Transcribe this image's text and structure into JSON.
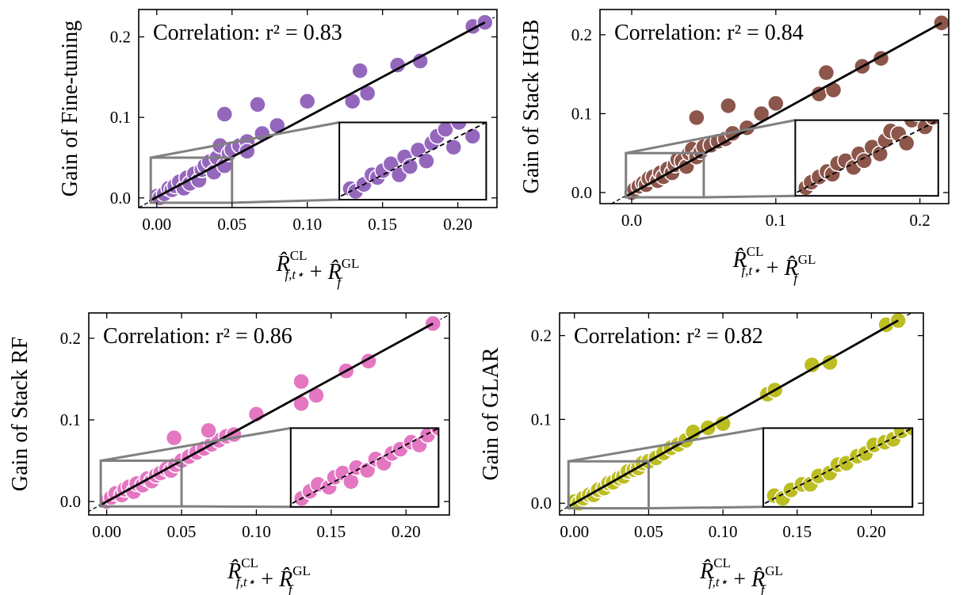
{
  "chart_data": [
    {
      "type": "scatter",
      "ylabel": "Gain of Fine-tuning",
      "annotation": "Correlation:  r² = 0.83",
      "color": "#9467bd",
      "xlabel": [
        {
          "text": "R̂",
          "sup": "CL",
          "sub": "f,t⋆"
        },
        {
          "text": " + "
        },
        {
          "text": "R̂",
          "sup": "GL",
          "sub": "f"
        }
      ],
      "x": [
        0.0,
        0.002,
        0.005,
        0.008,
        0.01,
        0.012,
        0.015,
        0.018,
        0.02,
        0.022,
        0.025,
        0.028,
        0.03,
        0.032,
        0.035,
        0.038,
        0.04,
        0.042,
        0.045,
        0.048,
        0.05,
        0.055,
        0.06,
        0.06,
        0.07,
        0.08,
        0.045,
        0.067,
        0.1,
        0.13,
        0.135,
        0.14,
        0.16,
        0.175,
        0.21,
        0.218
      ],
      "y": [
        0.002,
        0.0,
        0.005,
        0.012,
        0.01,
        0.015,
        0.02,
        0.012,
        0.025,
        0.018,
        0.03,
        0.022,
        0.035,
        0.04,
        0.045,
        0.032,
        0.05,
        0.065,
        0.04,
        0.055,
        0.06,
        0.065,
        0.07,
        0.058,
        0.08,
        0.09,
        0.104,
        0.116,
        0.12,
        0.12,
        0.158,
        0.13,
        0.165,
        0.17,
        0.213,
        0.218
      ],
      "fit": {
        "x": [
          -0.005,
          0.218
        ],
        "y": [
          -0.004,
          0.218
        ]
      },
      "diagonal": true,
      "inset": {
        "xlim": [
          -0.004,
          0.05
        ],
        "ylim": [
          -0.006,
          0.05
        ]
      },
      "xlim": [
        -0.012,
        0.226
      ],
      "ylim": [
        -0.012,
        0.234
      ],
      "xticks": [
        {
          "value": 0,
          "label": "0.00"
        },
        {
          "value": 0.05,
          "label": "0.05"
        },
        {
          "value": 0.1,
          "label": "0.10"
        },
        {
          "value": 0.15,
          "label": "0.15"
        },
        {
          "value": 0.2,
          "label": "0.20"
        }
      ],
      "yticks": [
        {
          "value": 0,
          "label": "0.0"
        },
        0.1,
        0.2
      ]
    },
    {
      "type": "scatter",
      "ylabel": "Gain of Stack HGB",
      "annotation": "Correlation:  r² = 0.84",
      "color": "#8c564b",
      "xlabel": [
        {
          "text": "R̂",
          "sup": "CL",
          "sub": "f,t⋆"
        },
        {
          "text": " + "
        },
        {
          "text": "R̂",
          "sup": "GL",
          "sub": "f"
        }
      ],
      "x": [
        0.0,
        0.002,
        0.005,
        0.008,
        0.01,
        0.012,
        0.015,
        0.018,
        0.02,
        0.022,
        0.025,
        0.028,
        0.03,
        0.032,
        0.035,
        0.038,
        0.04,
        0.042,
        0.045,
        0.048,
        0.05,
        0.055,
        0.06,
        0.065,
        0.07,
        0.08,
        0.09,
        0.045,
        0.067,
        0.1,
        0.13,
        0.135,
        0.14,
        0.16,
        0.173,
        0.215
      ],
      "y": [
        0.0,
        0.004,
        0.008,
        0.012,
        0.01,
        0.018,
        0.02,
        0.015,
        0.025,
        0.02,
        0.03,
        0.025,
        0.035,
        0.042,
        0.04,
        0.033,
        0.05,
        0.055,
        0.045,
        0.052,
        0.058,
        0.06,
        0.065,
        0.068,
        0.075,
        0.082,
        0.1,
        0.095,
        0.11,
        0.113,
        0.125,
        0.152,
        0.13,
        0.16,
        0.17,
        0.215
      ],
      "fit": {
        "x": [
          -0.005,
          0.215
        ],
        "y": [
          -0.006,
          0.215
        ]
      },
      "diagonal": true,
      "inset": {
        "xlim": [
          -0.004,
          0.05
        ],
        "ylim": [
          -0.006,
          0.05
        ]
      },
      "xlim": [
        -0.022,
        0.22
      ],
      "ylim": [
        -0.014,
        0.232
      ],
      "xticks": [
        {
          "value": 0,
          "label": "0.0"
        },
        0.1,
        0.2
      ],
      "yticks": [
        {
          "value": 0,
          "label": "0.0"
        },
        0.1,
        0.2
      ]
    },
    {
      "type": "scatter",
      "ylabel": "Gain of Stack RF",
      "annotation": "Correlation:  r² = 0.86",
      "color": "#e377c2",
      "xlabel": [
        {
          "text": "R̂",
          "sup": "CL",
          "sub": "f,t⋆"
        },
        {
          "text": " + "
        },
        {
          "text": "R̂",
          "sup": "GL",
          "sub": "f"
        }
      ],
      "x": [
        0.0,
        0.003,
        0.006,
        0.01,
        0.012,
        0.015,
        0.018,
        0.02,
        0.024,
        0.027,
        0.03,
        0.033,
        0.036,
        0.04,
        0.043,
        0.046,
        0.05,
        0.055,
        0.06,
        0.065,
        0.07,
        0.075,
        0.08,
        0.085,
        0.045,
        0.068,
        0.1,
        0.13,
        0.13,
        0.14,
        0.16,
        0.175,
        0.218
      ],
      "y": [
        0.0,
        0.005,
        0.01,
        0.008,
        0.015,
        0.018,
        0.012,
        0.022,
        0.02,
        0.028,
        0.025,
        0.032,
        0.035,
        0.04,
        0.038,
        0.045,
        0.05,
        0.055,
        0.06,
        0.065,
        0.07,
        0.075,
        0.08,
        0.082,
        0.078,
        0.087,
        0.107,
        0.12,
        0.147,
        0.13,
        0.16,
        0.172,
        0.218
      ],
      "fit": {
        "x": [
          -0.005,
          0.218
        ],
        "y": [
          -0.005,
          0.218
        ]
      },
      "diagonal": true,
      "inset": {
        "xlim": [
          -0.004,
          0.05
        ],
        "ylim": [
          -0.006,
          0.05
        ]
      },
      "xlim": [
        -0.012,
        0.229
      ],
      "ylim": [
        -0.0165,
        0.231
      ],
      "xticks": [
        {
          "value": 0,
          "label": "0.00"
        },
        {
          "value": 0.05,
          "label": "0.05"
        },
        {
          "value": 0.1,
          "label": "0.10"
        },
        {
          "value": 0.15,
          "label": "0.15"
        },
        {
          "value": 0.2,
          "label": "0.20"
        }
      ],
      "yticks": [
        {
          "value": 0,
          "label": "0.0"
        },
        0.1,
        0.2
      ]
    },
    {
      "type": "scatter",
      "ylabel": "Gain of GLAR",
      "annotation": "Correlation:  r² = 0.82",
      "color": "#bcbd22",
      "xlabel": [
        {
          "text": "R̂",
          "sup": "CL",
          "sub": "f,t⋆"
        },
        {
          "text": " + "
        },
        {
          "text": "R̂",
          "sup": "GL",
          "sub": "f"
        }
      ],
      "x": [
        0.0,
        0.003,
        0.006,
        0.01,
        0.013,
        0.016,
        0.02,
        0.023,
        0.026,
        0.03,
        0.033,
        0.036,
        0.04,
        0.043,
        0.046,
        0.05,
        0.055,
        0.06,
        0.065,
        0.07,
        0.075,
        0.08,
        0.09,
        0.1,
        0.13,
        0.135,
        0.16,
        0.172,
        0.21,
        0.218
      ],
      "y": [
        0.002,
        0.0,
        0.006,
        0.01,
        0.01,
        0.016,
        0.018,
        0.024,
        0.025,
        0.03,
        0.032,
        0.038,
        0.04,
        0.042,
        0.048,
        0.05,
        0.054,
        0.06,
        0.066,
        0.07,
        0.075,
        0.085,
        0.09,
        0.095,
        0.13,
        0.135,
        0.165,
        0.168,
        0.213,
        0.218
      ],
      "fit": {
        "x": [
          -0.005,
          0.218
        ],
        "y": [
          -0.005,
          0.218
        ]
      },
      "diagonal": true,
      "inset": {
        "xlim": [
          -0.004,
          0.05
        ],
        "ylim": [
          -0.006,
          0.05
        ]
      },
      "xlim": [
        -0.01,
        0.235
      ],
      "ylim": [
        -0.014,
        0.227
      ],
      "xticks": [
        {
          "value": 0,
          "label": "0.00"
        },
        {
          "value": 0.05,
          "label": "0.05"
        },
        {
          "value": 0.1,
          "label": "0.10"
        },
        {
          "value": 0.15,
          "label": "0.15"
        },
        {
          "value": 0.2,
          "label": "0.20"
        }
      ],
      "yticks": [
        {
          "value": 0,
          "label": "0.0"
        },
        0.1,
        0.2
      ]
    }
  ]
}
